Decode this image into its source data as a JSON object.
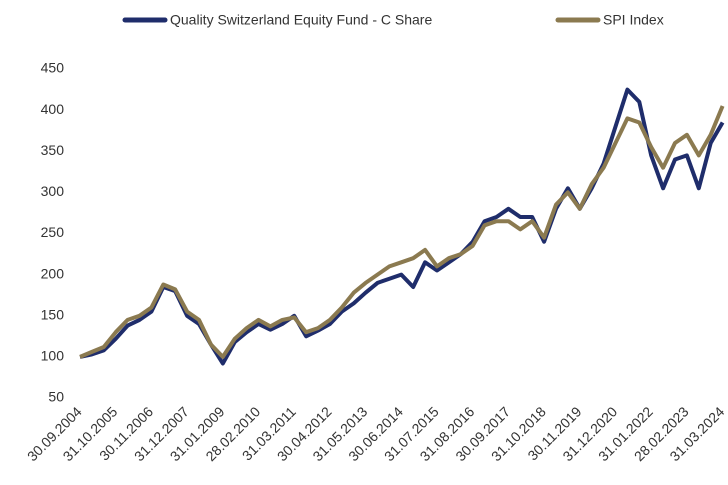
{
  "chart_data": {
    "type": "line",
    "categories": [
      "30.09.2004",
      null,
      null,
      "31.10.2005",
      null,
      null,
      "30.11.2006",
      null,
      null,
      "31.12.2007",
      null,
      null,
      "31.01.2009",
      null,
      null,
      "28.02.2010",
      null,
      null,
      "31.03.2011",
      null,
      null,
      "30.04.2012",
      null,
      null,
      "31.05.2013",
      null,
      null,
      "30.06.2014",
      null,
      null,
      "31.07.2015",
      null,
      null,
      "31.08.2016",
      null,
      null,
      "30.09.2017",
      null,
      null,
      "31.10.2018",
      null,
      null,
      "30.11.2019",
      null,
      null,
      "31.12.2020",
      null,
      null,
      "31.01.2022",
      null,
      null,
      "28.02.2023",
      null,
      null,
      "31.03.2024"
    ],
    "series": [
      {
        "name": "Quality Switzerland Equity Fund - C Share",
        "color": "#1f2d6b",
        "values": [
          100,
          103,
          108,
          122,
          138,
          145,
          155,
          185,
          180,
          150,
          140,
          115,
          92,
          118,
          130,
          140,
          133,
          140,
          150,
          125,
          132,
          140,
          155,
          165,
          178,
          190,
          195,
          200,
          185,
          215,
          205,
          215,
          225,
          240,
          265,
          270,
          280,
          270,
          270,
          240,
          280,
          305,
          280,
          305,
          335,
          380,
          425,
          410,
          345,
          305,
          340,
          345,
          305,
          360,
          385
        ]
      },
      {
        "name": "SPI Index",
        "color": "#8b7a50",
        "values": [
          100,
          106,
          112,
          130,
          145,
          150,
          160,
          188,
          182,
          155,
          145,
          115,
          100,
          122,
          135,
          145,
          137,
          145,
          148,
          130,
          135,
          145,
          160,
          178,
          190,
          200,
          210,
          215,
          220,
          230,
          210,
          220,
          225,
          235,
          260,
          265,
          265,
          255,
          265,
          245,
          285,
          300,
          280,
          310,
          330,
          360,
          390,
          385,
          355,
          330,
          360,
          370,
          345,
          370,
          405
        ]
      }
    ],
    "ylim": [
      50,
      450
    ],
    "yticks": [
      50,
      100,
      150,
      200,
      250,
      300,
      350,
      400,
      450
    ],
    "grid": false
  }
}
